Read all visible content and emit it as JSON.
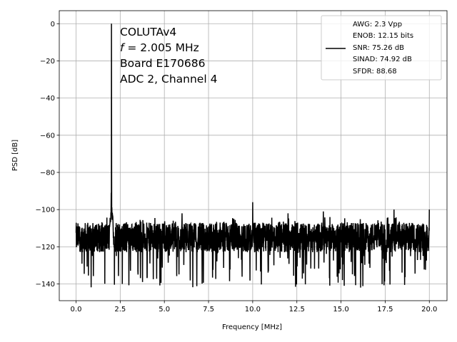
{
  "chart_data": {
    "type": "line",
    "xlabel": "Frequency [MHz]",
    "ylabel": "PSD [dB]",
    "xlim": [
      -0.95,
      21.0
    ],
    "ylim": [
      -149,
      7
    ],
    "x_ticks": [
      0.0,
      2.5,
      5.0,
      7.5,
      10.0,
      12.5,
      15.0,
      17.5,
      20.0
    ],
    "x_tick_labels": [
      "0.0",
      "2.5",
      "5.0",
      "7.5",
      "10.0",
      "12.5",
      "15.0",
      "17.5",
      "20.0"
    ],
    "y_ticks": [
      0,
      -20,
      -40,
      -60,
      -80,
      -100,
      -120,
      -140
    ],
    "y_tick_labels": [
      "0",
      "−20",
      "−40",
      "−60",
      "−80",
      "−100",
      "−120",
      "−140"
    ],
    "grid": true,
    "line_color": "#000000",
    "annotation": {
      "line1": "COLUTAv4",
      "line2_symbol": "f",
      "line2_text": " = 2.005 MHz",
      "line3": "Board E170686",
      "line4": "ADC 2, Channel 4"
    },
    "legend": {
      "placement": "top-right",
      "lines": [
        "AWG: 2.3 Vpp",
        "ENOB: 12.15 bits",
        "SNR: 75.26 dB",
        "SINAD: 74.92 dB",
        "SFDR: 88.68"
      ]
    },
    "series": [
      {
        "x_range": [
          0.0,
          20.0
        ],
        "noise_floor_db": -115,
        "noise_floor_max_db": -104,
        "noise_floor_min_db": -142,
        "peaks": [
          {
            "x": 2.005,
            "y": 0
          },
          {
            "x": 1.99,
            "y": -91
          },
          {
            "x": 6.0,
            "y": -102
          },
          {
            "x": 10.0,
            "y": -96
          },
          {
            "x": 12.0,
            "y": -102
          },
          {
            "x": 14.0,
            "y": -101
          },
          {
            "x": 18.0,
            "y": -100
          },
          {
            "x": 20.0,
            "y": -100
          }
        ]
      }
    ]
  }
}
